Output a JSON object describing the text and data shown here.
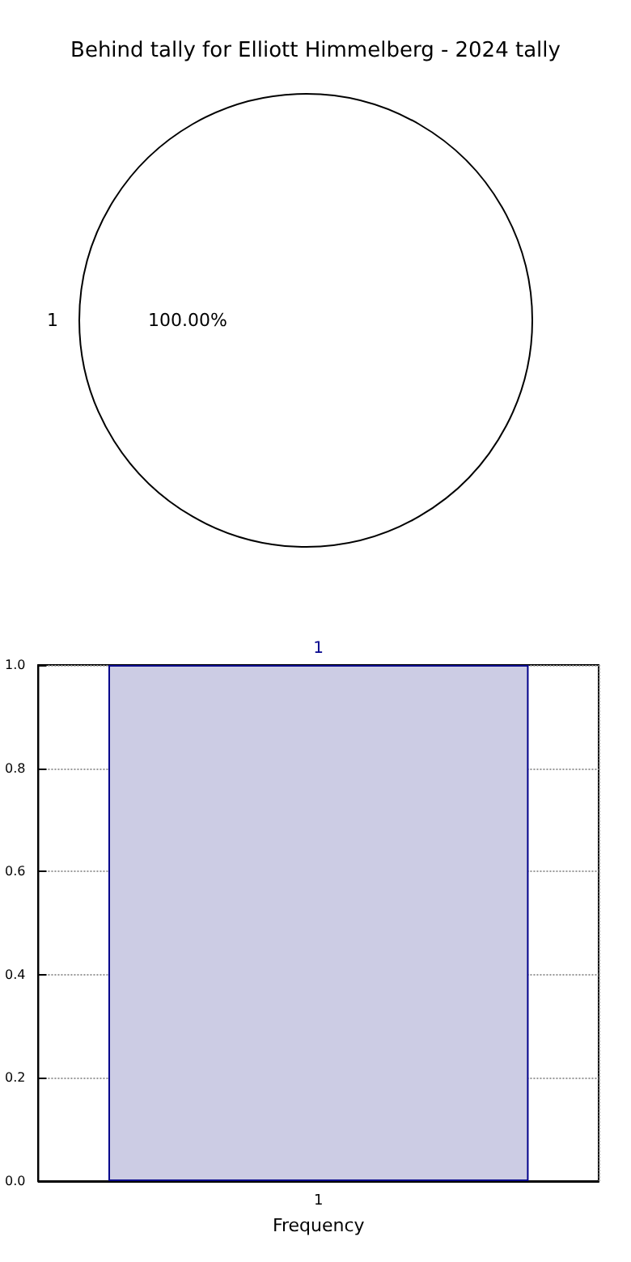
{
  "chart_data": [
    {
      "type": "pie",
      "title": "Behind tally for Elliott Himmelberg - 2024 tally",
      "categories": [
        "1"
      ],
      "values": [
        100
      ],
      "colors": [
        "#ffffff"
      ],
      "value_labels": [
        "100.00%"
      ],
      "legend": false
    },
    {
      "type": "bar",
      "xlabel": "Frequency",
      "categories": [
        "1"
      ],
      "values": [
        1
      ],
      "color": "#cccce4",
      "ylim": [
        0,
        1
      ],
      "yticks": [
        {
          "value": 0,
          "label": "0.0"
        },
        0.2,
        0.4,
        0.6,
        0.8,
        {
          "value": 1,
          "label": "1.0"
        }
      ],
      "grid": true,
      "data_labels": true,
      "legend": false
    }
  ]
}
